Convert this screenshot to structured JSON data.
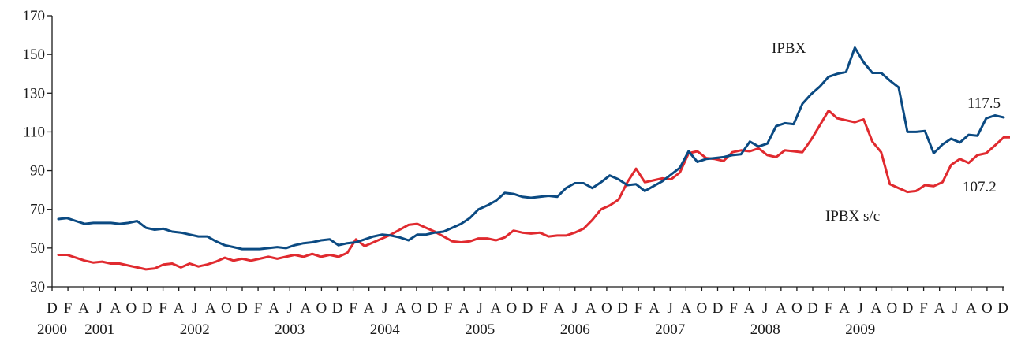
{
  "chart_data": {
    "type": "line",
    "ylim": [
      30,
      170
    ],
    "yticks": [
      30,
      50,
      70,
      90,
      110,
      130,
      150,
      170
    ],
    "x_start": "2000-12",
    "month_letters": [
      "D",
      "F",
      "A",
      "J",
      "A",
      "O",
      "D",
      "F",
      "A",
      "J",
      "A",
      "O",
      "D",
      "F",
      "A",
      "J",
      "A",
      "O",
      "D",
      "F",
      "A",
      "J",
      "A",
      "O",
      "D",
      "F",
      "A",
      "J",
      "A",
      "O",
      "D",
      "F",
      "A",
      "J",
      "A",
      "O",
      "D",
      "F",
      "A",
      "J",
      "A",
      "O",
      "D",
      "F",
      "A",
      "J",
      "A",
      "O",
      "D",
      "F",
      "A",
      "J",
      "A",
      "O",
      "D",
      "F",
      "A",
      "J",
      "A",
      "O",
      "D"
    ],
    "years": [
      "2000",
      "2001",
      "2002",
      "2003",
      "2004",
      "2005",
      "2006",
      "2007",
      "2008",
      "2009"
    ],
    "series": [
      {
        "name": "IPBX",
        "color": "#0b4a82",
        "end_value": "117.5",
        "values": [
          65,
          65.5,
          64,
          62.5,
          63,
          63,
          63,
          62.5,
          63,
          64,
          60.5,
          59.5,
          60,
          58.5,
          58,
          57,
          56,
          56,
          53.5,
          51.5,
          50.5,
          49.5,
          49.5,
          49.5,
          50,
          50.5,
          50,
          51.5,
          52.5,
          53,
          54,
          54.5,
          51.5,
          52.5,
          53,
          54.5,
          56,
          57,
          56.5,
          55.5,
          54,
          57,
          57,
          58,
          58.5,
          60.5,
          62.5,
          65.5,
          70,
          72,
          74.5,
          78.5,
          78,
          76.5,
          76,
          76.5,
          77,
          76.5,
          81,
          83.5,
          83.5,
          81,
          84,
          87.5,
          85.5,
          82.5,
          83,
          79.5,
          82,
          84.5,
          88,
          91.5,
          100,
          94.5,
          96,
          96.5,
          97,
          98,
          98.5,
          105,
          102.5,
          104,
          113,
          114.5,
          114,
          124.5,
          129.5,
          133.5,
          138.5,
          140,
          141,
          153.5,
          146,
          140.5,
          140.5,
          136.5,
          133,
          110,
          110,
          110.5,
          99,
          103.5,
          106.5,
          104.5,
          108.5,
          108,
          117,
          118.5,
          117.5
        ]
      },
      {
        "name": "IPBX s/c",
        "color": "#e02a2f",
        "end_value": "107.2",
        "values": [
          46.5,
          46.5,
          45,
          43.5,
          42.5,
          43,
          42,
          42,
          41,
          40,
          39,
          39.5,
          41.5,
          42,
          40,
          42,
          40.5,
          41.5,
          43,
          45,
          43.5,
          44.5,
          43.5,
          44.5,
          45.5,
          44.5,
          45.5,
          46.5,
          45.5,
          47,
          45.5,
          46.5,
          45.5,
          47.5,
          54.5,
          51,
          53,
          55,
          57,
          59.5,
          62,
          62.5,
          60.5,
          58.5,
          56,
          53.5,
          53,
          53.5,
          55,
          55,
          54,
          55.5,
          59,
          58,
          57.5,
          58,
          56,
          56.5,
          56.5,
          58,
          60,
          64.5,
          70,
          72,
          75,
          84,
          91,
          84,
          85,
          86,
          85.5,
          89,
          99,
          100,
          96.5,
          96,
          95,
          99.5,
          100.5,
          100,
          101.5,
          98,
          97,
          100.5,
          100,
          99.5,
          106,
          113.5,
          121,
          117,
          116,
          115,
          116.5,
          105,
          99.5,
          83,
          81,
          79,
          79.5,
          82.5,
          82,
          84,
          93,
          96,
          94,
          98,
          99,
          103,
          107.2,
          107.2
        ]
      }
    ]
  },
  "labels": {
    "ipbx": "IPBX",
    "ipbx_sc": "IPBX s/c",
    "end_ipbx": "117.5",
    "end_ipbx_sc": "107.2"
  }
}
